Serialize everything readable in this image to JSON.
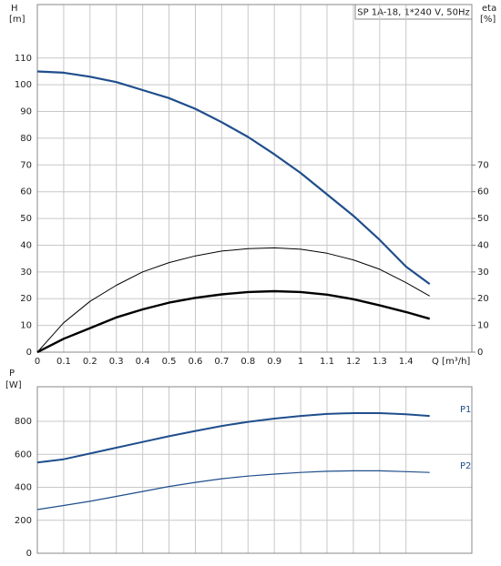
{
  "chart_data": [
    {
      "type": "line",
      "title": "SP 1A-18, 1*240 V, 50Hz",
      "ylabel": "H",
      "yunit": "[m]",
      "y2label": "eta",
      "y2unit": "[%]",
      "xlabel": "Q [m³/h]",
      "x": [
        0,
        0.1,
        0.2,
        0.3,
        0.4,
        0.5,
        0.6,
        0.7,
        0.8,
        0.9,
        1.0,
        1.1,
        1.2,
        1.3,
        1.4,
        1.49
      ],
      "series": [
        {
          "color": "#1f4e8c",
          "width": 2.2,
          "axis": "y",
          "values": [
            105,
            104.5,
            103,
            101,
            98,
            95,
            91,
            86,
            80.5,
            74,
            67,
            59,
            51,
            42,
            32,
            25.5
          ]
        },
        {
          "color": "#000000",
          "width": 1,
          "axis": "y2",
          "values": [
            0,
            11,
            19,
            25,
            30,
            33.5,
            36,
            37.8,
            38.7,
            39,
            38.5,
            37,
            34.5,
            31,
            26,
            21
          ]
        },
        {
          "color": "#000000",
          "width": 2.4,
          "axis": "y2",
          "values": [
            0,
            5,
            9,
            13,
            16,
            18.5,
            20.3,
            21.6,
            22.5,
            22.8,
            22.5,
            21.5,
            19.8,
            17.5,
            15,
            12.5
          ]
        }
      ],
      "xlim": [
        0,
        1.65
      ],
      "xticks": [
        0,
        0.1,
        0.2,
        0.3,
        0.4,
        0.5,
        0.6,
        0.7,
        0.8,
        0.9,
        1,
        1.1,
        1.2,
        1.3,
        1.4
      ],
      "ylim": [
        0,
        130
      ],
      "yticks": [
        0,
        10,
        20,
        30,
        40,
        50,
        60,
        70,
        80,
        90,
        100,
        110
      ],
      "y2lim": [
        0,
        130
      ],
      "y2ticks": [
        0,
        10,
        20,
        30,
        40,
        50,
        60,
        70
      ],
      "grid": true,
      "xtick_labels": true
    },
    {
      "type": "line",
      "ylabel": "P",
      "yunit": "[W]",
      "x": [
        0,
        0.1,
        0.2,
        0.3,
        0.4,
        0.5,
        0.6,
        0.7,
        0.8,
        0.9,
        1.0,
        1.1,
        1.2,
        1.3,
        1.4,
        1.49
      ],
      "series": [
        {
          "name": "P1",
          "color": "#1f4e8c",
          "width": 2,
          "axis": "y",
          "values": [
            550,
            570,
            605,
            640,
            675,
            710,
            742,
            772,
            797,
            817,
            833,
            845,
            850,
            850,
            843,
            833
          ]
        },
        {
          "name": "P2",
          "color": "#1f4e8c",
          "width": 1.2,
          "axis": "y",
          "values": [
            265,
            290,
            315,
            345,
            375,
            405,
            430,
            452,
            468,
            480,
            490,
            497,
            500,
            500,
            495,
            490
          ]
        }
      ],
      "xlim": [
        0,
        1.65
      ],
      "xticks": [
        0,
        0.1,
        0.2,
        0.3,
        0.4,
        0.5,
        0.6,
        0.7,
        0.8,
        0.9,
        1,
        1.1,
        1.2,
        1.3,
        1.4
      ],
      "ylim": [
        0,
        1010
      ],
      "yticks": [
        0,
        200,
        400,
        600,
        800
      ],
      "grid": true,
      "xtick_labels": false
    }
  ]
}
